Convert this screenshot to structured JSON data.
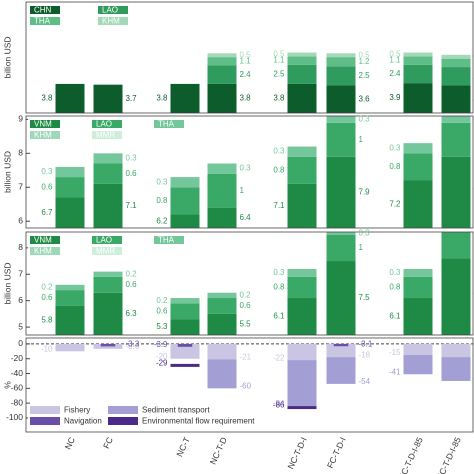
{
  "chart_data": [
    {
      "type": "stacked-bar",
      "y_label": "billion USD",
      "ylim": [
        0,
        14.5
      ],
      "legend": "upper left",
      "series": [
        {
          "name": "CHN",
          "color": "#0d5c2c",
          "values": [
            3.8,
            3.7,
            3.8,
            3.8,
            3.8,
            3.6,
            3.9,
            3.6
          ]
        },
        {
          "name": "LAO",
          "color": "#2f9b5c",
          "values": [
            null,
            null,
            null,
            2.4,
            2.5,
            2.5,
            2.4,
            2.4
          ]
        },
        {
          "name": "THA",
          "color": "#5fbd87",
          "values": [
            null,
            null,
            null,
            1.1,
            1.1,
            1.2,
            1.1,
            1.1
          ]
        },
        {
          "name": "KHM",
          "color": "#a3d9b9",
          "values": [
            null,
            null,
            null,
            0.5,
            0.5,
            0.5,
            0.5,
            0.5
          ]
        }
      ]
    },
    {
      "type": "stacked-bar",
      "y_label": "billion USD",
      "ylim": [
        5.8,
        9.1
      ],
      "yticks": [
        6,
        7,
        8,
        9
      ],
      "legend": "upper left",
      "series": [
        {
          "name": "VNM",
          "color": "#1f8a45",
          "values": [
            6.7,
            7.1,
            6.2,
            6.4,
            7.1,
            7.9,
            7.2,
            7.9
          ]
        },
        {
          "name": "LAO",
          "color": "#3aa866",
          "values": [
            0.6,
            0.6,
            0.8,
            1.0,
            0.8,
            1.0,
            0.8,
            1.0
          ]
        },
        {
          "name": "THA",
          "color": "#73c79b",
          "values": [
            0.3,
            0.3,
            0.3,
            0.3,
            0.3,
            0.3,
            0.3,
            0.3
          ]
        },
        {
          "name": "KHM",
          "color": "#9fd8b8",
          "values": [
            null,
            null,
            null,
            null,
            null,
            null,
            null,
            null
          ]
        },
        {
          "name": "MMR",
          "color": "#cdeedb",
          "values": [
            null,
            null,
            null,
            null,
            null,
            null,
            null,
            null
          ]
        }
      ]
    },
    {
      "type": "stacked-bar",
      "y_label": "billion USD",
      "ylim": [
        4.7,
        8.6
      ],
      "yticks": [
        5,
        6,
        7,
        8
      ],
      "legend": "upper left",
      "series": [
        {
          "name": "VNM",
          "color": "#1f8a45",
          "values": [
            5.8,
            6.3,
            5.3,
            5.5,
            6.1,
            7.5,
            6.1,
            7.6
          ]
        },
        {
          "name": "LAO",
          "color": "#3aa866",
          "values": [
            0.6,
            0.6,
            0.6,
            0.6,
            0.8,
            1.0,
            0.8,
            1.0
          ]
        },
        {
          "name": "THA",
          "color": "#73c79b",
          "values": [
            0.2,
            0.2,
            0.2,
            0.2,
            0.3,
            0.3,
            0.3,
            0.3
          ]
        },
        {
          "name": "KHM",
          "color": "#9fd8b8",
          "values": [
            null,
            null,
            null,
            null,
            null,
            null,
            null,
            null
          ]
        },
        {
          "name": "MMR",
          "color": "#cdeedb",
          "values": [
            null,
            null,
            null,
            null,
            null,
            null,
            null,
            null
          ]
        }
      ]
    },
    {
      "type": "overlap-bar",
      "y_label": "%",
      "ylim": [
        -119,
        8
      ],
      "yticks": [
        0,
        -20,
        -40,
        -60,
        -80,
        -100
      ],
      "legend": "lower left",
      "categories": [
        "NC",
        "FC",
        "NC-T",
        "NC-T-D",
        "NC-T-D-I",
        "FC-T-D-I",
        "NC-T-D-I-85",
        "FC-T-D-I-85"
      ],
      "series": [
        {
          "name": "Fishery",
          "color": "#c9c5e2",
          "values": [
            -10,
            -6.6,
            -20,
            -21,
            -22,
            -18,
            -15,
            -18
          ]
        },
        {
          "name": "Sediment transport",
          "color": "#a39ed3",
          "values": [
            null,
            null,
            null,
            -60,
            -84,
            -54,
            -41,
            -50
          ]
        },
        {
          "name": "Navigation",
          "color": "#6a4fa8",
          "values": [
            null,
            -3.3,
            -3.9,
            null,
            null,
            -3.1,
            null,
            null
          ]
        },
        {
          "name": "Environmental flow requirement",
          "color": "#4b2a8a",
          "values": [
            null,
            null,
            -29,
            null,
            -86,
            null,
            null,
            null
          ]
        }
      ]
    }
  ]
}
